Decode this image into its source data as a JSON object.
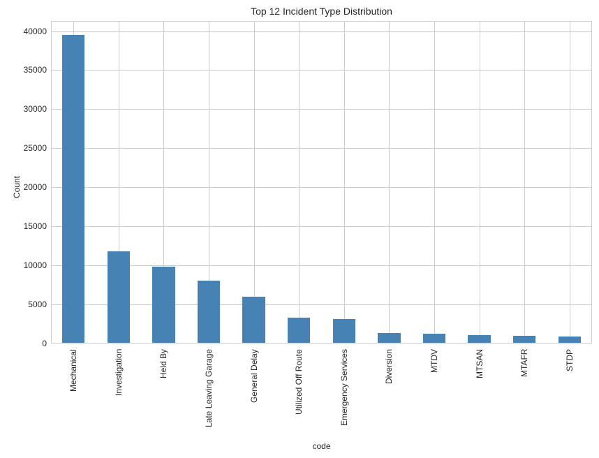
{
  "chart_data": {
    "type": "bar",
    "title": "Top 12 Incident Type Distribution",
    "xlabel": "code",
    "ylabel": "Count",
    "categories": [
      "Mechanical",
      "Investigation",
      "Held By",
      "Late Leaving Garage",
      "General Delay",
      "Utilized Off Route",
      "Emergency Services",
      "Diversion",
      "MTDV",
      "MTSAN",
      "MTAFR",
      "STDP"
    ],
    "values": [
      39450,
      11750,
      9780,
      7980,
      5900,
      3230,
      3050,
      1250,
      1160,
      990,
      900,
      810
    ],
    "ylim": [
      0,
      41300
    ],
    "yticks": [
      0,
      5000,
      10000,
      15000,
      20000,
      25000,
      30000,
      35000,
      40000
    ],
    "ytick_labels": [
      "0",
      "5000",
      "10000",
      "15000",
      "20000",
      "25000",
      "30000",
      "35000",
      "40000"
    ],
    "grid": true,
    "legend": null,
    "bar_color": "#4682b4",
    "grid_color": "#cccccc"
  }
}
